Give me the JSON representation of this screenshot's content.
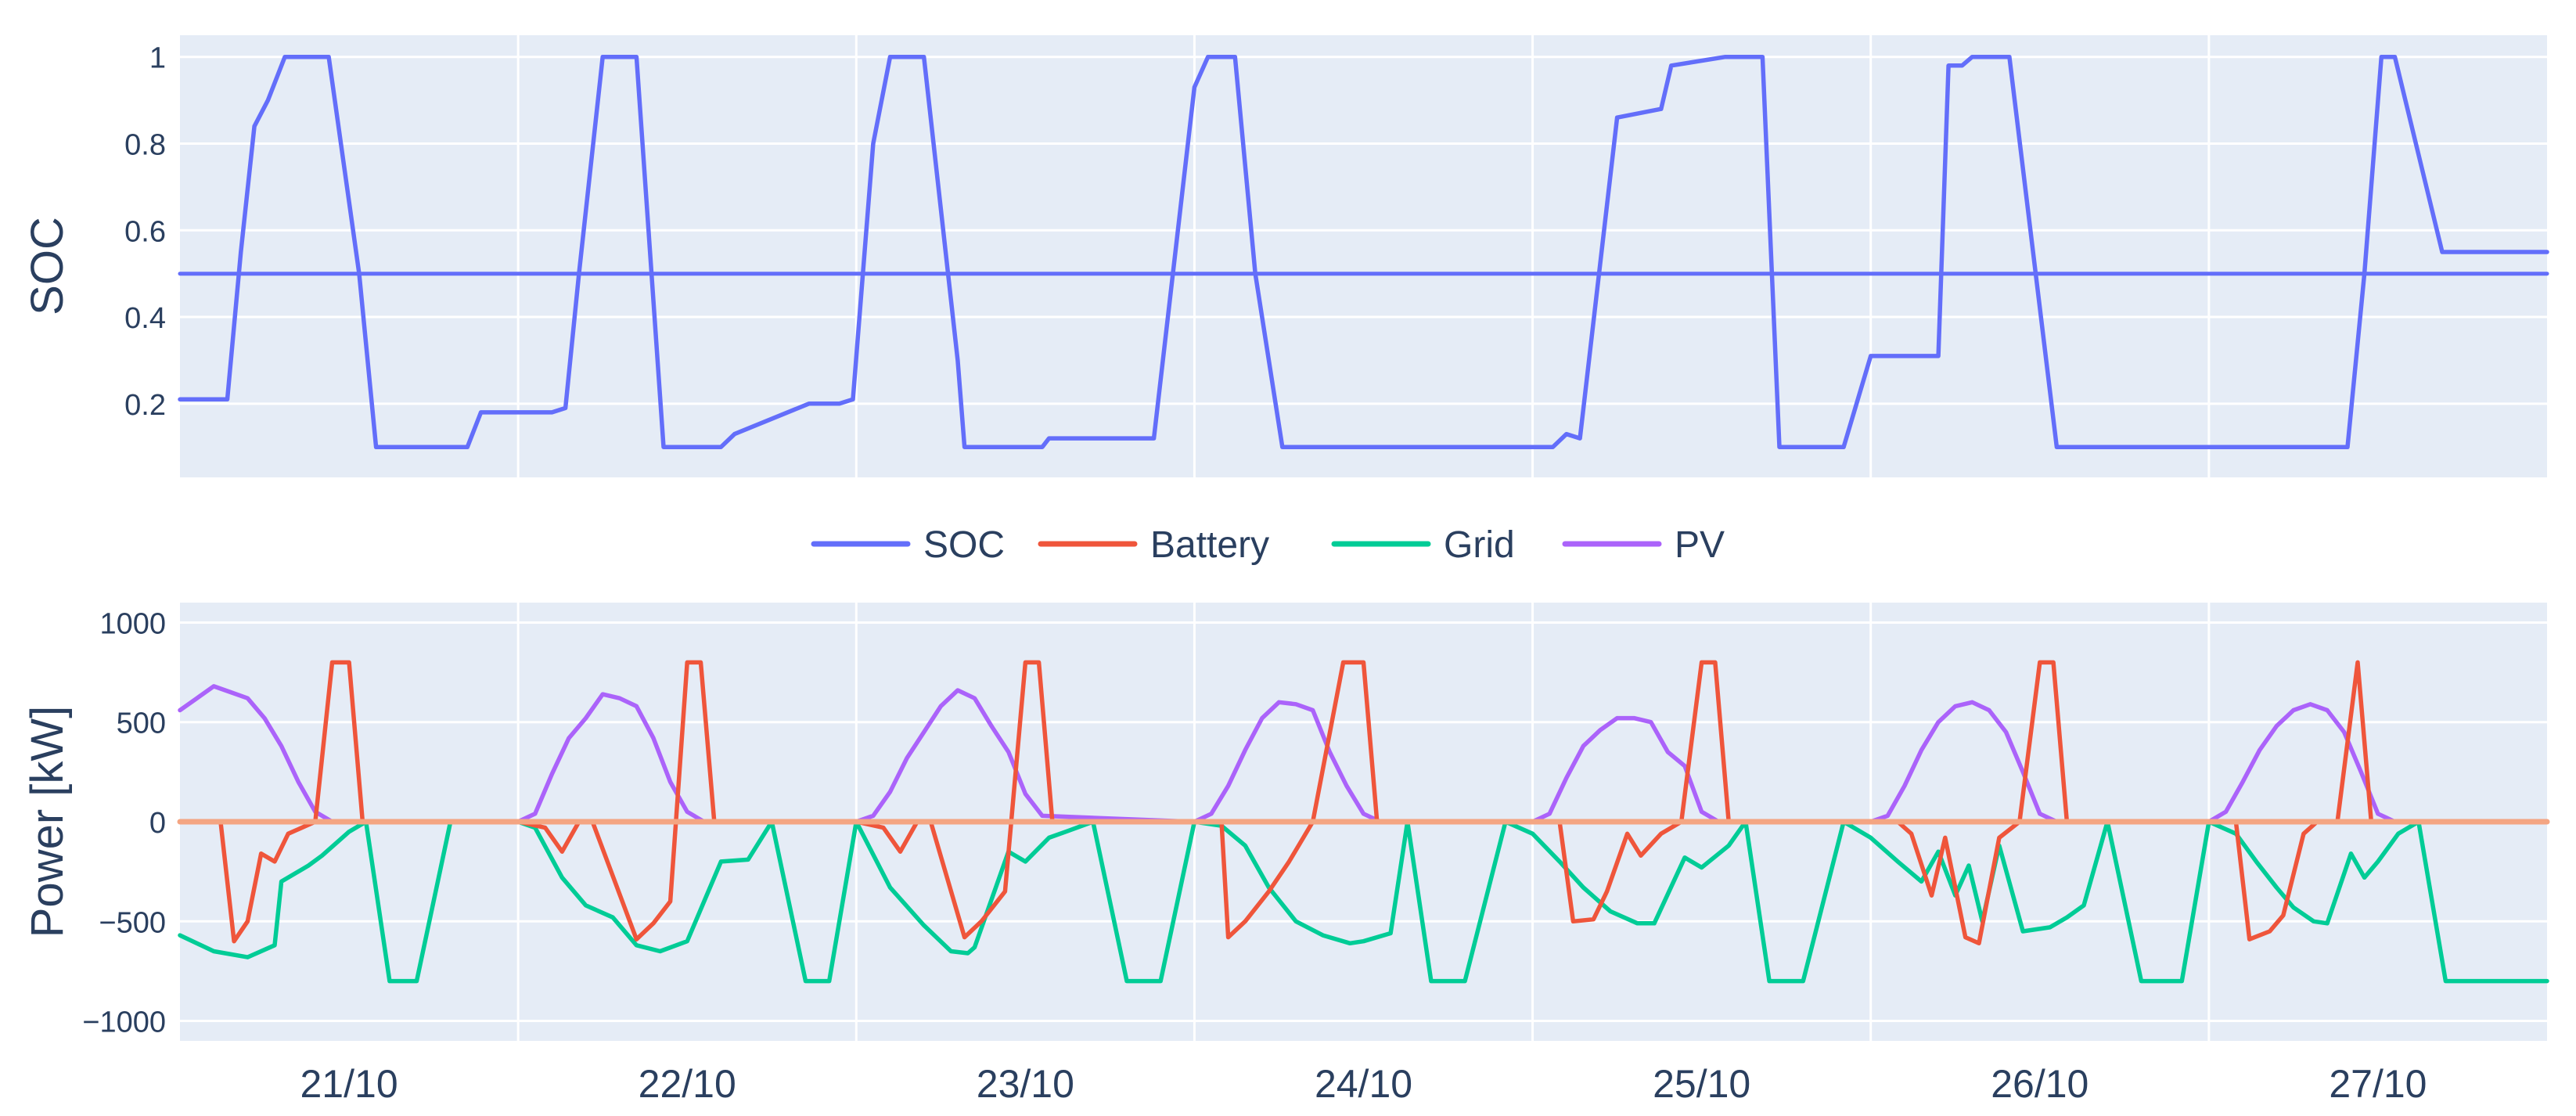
{
  "colors": {
    "soc": "#636efa",
    "battery": "#ef553b",
    "grid": "#00cc96",
    "pv": "#ab63fa",
    "zero_line": "#f4a582",
    "plot_bg": "#e5ecf6",
    "grid_line": "#ffffff",
    "text": "#2a3f5f"
  },
  "legend": {
    "placement": "between-panels-center",
    "items": [
      "SOC",
      "Battery",
      "Grid",
      "PV"
    ]
  },
  "chart_data": [
    {
      "type": "line",
      "panel": "top",
      "xlabel": "",
      "ylabel": "SOC",
      "ylim": [
        0.03,
        1.05
      ],
      "yticks": [
        0.2,
        0.4,
        0.6,
        0.8,
        1
      ],
      "ytick_labels": [
        "0.2",
        "0.4",
        "0.6",
        "0.8",
        "1"
      ],
      "xlim": [
        0,
        7
      ],
      "grid": true,
      "series": [
        {
          "name": "SOC",
          "x": [
            0,
            0.14,
            0.18,
            0.22,
            0.26,
            0.31,
            0.44,
            0.53,
            0.58,
            0.85,
            0.89,
            1.1,
            1.14,
            1.18,
            1.25,
            1.28,
            1.35,
            1.43,
            1.6,
            1.64,
            1.86,
            1.91,
            1.95,
            1.99,
            2.05,
            2.1,
            2.2,
            2.3,
            2.32,
            2.38,
            2.45,
            2.55,
            2.57,
            2.63,
            2.68,
            2.76,
            2.88,
            3.0,
            3.04,
            3.08,
            3.12,
            3.18,
            3.26,
            3.35,
            3.42,
            3.45,
            3.53,
            3.57,
            3.64,
            4.01,
            4.06,
            4.1,
            4.14,
            4.25,
            4.38,
            4.41,
            4.57,
            4.6,
            4.64,
            4.68,
            4.73,
            4.8,
            4.87,
            4.92,
            5.0,
            5.2,
            5.23,
            5.27,
            5.3,
            5.35,
            5.41,
            5.55,
            5.59,
            5.63,
            5.68,
            5.87,
            5.91,
            6.41,
            6.46,
            6.51,
            6.55,
            6.69,
            7.0
          ],
          "values": [
            0.21,
            0.21,
            0.55,
            0.84,
            0.9,
            1.0,
            1.0,
            0.5,
            0.1,
            0.1,
            0.18,
            0.18,
            0.19,
            0.5,
            1.0,
            1.0,
            1.0,
            0.1,
            0.1,
            0.13,
            0.2,
            0.2,
            0.2,
            0.21,
            0.8,
            1.0,
            1.0,
            0.3,
            0.1,
            0.1,
            0.1,
            0.1,
            0.12,
            0.12,
            0.12,
            0.12,
            0.12,
            0.93,
            1.0,
            1.0,
            1.0,
            0.5,
            0.1,
            0.1,
            0.1,
            0.1,
            0.1,
            0.1,
            0.1,
            0.1,
            0.1,
            0.13,
            0.12,
            0.86,
            0.88,
            0.98,
            1.0,
            1.0,
            1.0,
            1.0,
            0.1,
            0.1,
            0.1,
            0.1,
            0.31,
            0.31,
            0.98,
            0.98,
            1.0,
            1.0,
            1.0,
            0.1,
            0.1,
            0.1,
            0.1,
            0.1,
            0.1,
            0.1,
            0.5,
            1.0,
            1.0,
            0.55,
            0.55
          ]
        },
        {
          "name": "",
          "x": [
            0,
            7
          ],
          "values": [
            0.5,
            0.5
          ]
        }
      ]
    },
    {
      "type": "line",
      "panel": "bottom",
      "xlabel": "",
      "ylabel": "Power [kW]",
      "ylim": [
        -1100,
        1100
      ],
      "yticks": [
        -1000,
        -500,
        0,
        500,
        1000
      ],
      "ytick_labels": [
        "−1000",
        "−500",
        "0",
        "500",
        "1000"
      ],
      "xlim": [
        0,
        7
      ],
      "grid": true,
      "categories": [
        "21/10",
        "22/10",
        "23/10",
        "24/10",
        "25/10",
        "26/10",
        "27/10"
      ],
      "series": [
        {
          "name": "PV",
          "x": [
            0,
            0.05,
            0.1,
            0.15,
            0.2,
            0.25,
            0.3,
            0.35,
            0.4,
            0.45,
            0.5,
            0.55,
            1.0,
            1.05,
            1.1,
            1.15,
            1.2,
            1.25,
            1.3,
            1.35,
            1.4,
            1.45,
            1.5,
            1.55,
            2.0,
            2.05,
            2.1,
            2.15,
            2.2,
            2.25,
            2.3,
            2.35,
            2.4,
            2.45,
            2.5,
            2.55,
            3.0,
            3.05,
            3.1,
            3.15,
            3.2,
            3.25,
            3.3,
            3.35,
            3.4,
            3.45,
            3.5,
            3.55,
            4.0,
            4.05,
            4.1,
            4.15,
            4.2,
            4.25,
            4.3,
            4.35,
            4.4,
            4.45,
            4.5,
            4.55,
            5.0,
            5.05,
            5.1,
            5.15,
            5.2,
            5.25,
            5.3,
            5.35,
            5.4,
            5.45,
            5.5,
            5.55,
            6.0,
            6.05,
            6.1,
            6.15,
            6.2,
            6.25,
            6.3,
            6.35,
            6.4,
            6.45,
            6.5,
            6.55
          ],
          "values": [
            560,
            620,
            680,
            650,
            620,
            520,
            380,
            200,
            50,
            0,
            0,
            0,
            0,
            40,
            240,
            420,
            520,
            640,
            620,
            580,
            420,
            200,
            50,
            0,
            0,
            30,
            150,
            320,
            450,
            580,
            660,
            620,
            480,
            350,
            140,
            30,
            0,
            40,
            180,
            360,
            520,
            600,
            590,
            560,
            350,
            180,
            40,
            0,
            0,
            40,
            220,
            380,
            460,
            520,
            520,
            500,
            350,
            280,
            50,
            0,
            0,
            30,
            180,
            360,
            500,
            580,
            600,
            560,
            450,
            250,
            40,
            0,
            0,
            50,
            200,
            360,
            480,
            560,
            590,
            560,
            450,
            250,
            40,
            0
          ]
        },
        {
          "name": "Grid",
          "x": [
            0,
            0.1,
            0.2,
            0.28,
            0.3,
            0.38,
            0.42,
            0.48,
            0.5,
            0.55,
            0.62,
            0.7,
            0.8,
            0.9,
            1.0,
            1.05,
            1.13,
            1.2,
            1.28,
            1.35,
            1.42,
            1.5,
            1.6,
            1.68,
            1.75,
            1.85,
            1.92,
            2.0,
            2.1,
            2.2,
            2.28,
            2.33,
            2.35,
            2.45,
            2.5,
            2.57,
            2.62,
            2.7,
            2.8,
            2.9,
            3.0,
            3.08,
            3.15,
            3.22,
            3.3,
            3.38,
            3.46,
            3.5,
            3.58,
            3.63,
            3.7,
            3.8,
            3.92,
            4.0,
            4.08,
            4.15,
            4.23,
            4.31,
            4.36,
            4.45,
            4.5,
            4.58,
            4.63,
            4.7,
            4.8,
            4.92,
            5.0,
            5.08,
            5.15,
            5.2,
            5.25,
            5.29,
            5.33,
            5.38,
            5.45,
            5.53,
            5.58,
            5.63,
            5.7,
            5.8,
            5.92,
            6.0,
            6.08,
            6.14,
            6.2,
            6.25,
            6.31,
            6.35,
            6.42,
            6.46,
            6.5,
            6.56,
            6.62,
            6.7,
            7.0
          ],
          "values": [
            -570,
            -650,
            -680,
            -620,
            -300,
            -220,
            -170,
            -80,
            -50,
            0,
            -800,
            -800,
            0,
            0,
            0,
            -30,
            -280,
            -420,
            -480,
            -620,
            -650,
            -600,
            -200,
            -190,
            0,
            -800,
            -800,
            0,
            -330,
            -520,
            -650,
            -660,
            -630,
            -150,
            -200,
            -80,
            -50,
            0,
            -800,
            -800,
            0,
            -20,
            -120,
            -330,
            -500,
            -570,
            -610,
            -600,
            -560,
            0,
            -800,
            -800,
            0,
            -60,
            -200,
            -330,
            -450,
            -510,
            -510,
            -180,
            -230,
            -120,
            0,
            -800,
            -800,
            0,
            -80,
            -200,
            -300,
            -150,
            -370,
            -220,
            -500,
            -120,
            -550,
            -530,
            -480,
            -420,
            0,
            -800,
            -800,
            0,
            -60,
            -200,
            -330,
            -430,
            -500,
            -510,
            -160,
            -280,
            -200,
            -60,
            0,
            -800,
            -800
          ]
        },
        {
          "name": "Battery",
          "x": [
            0,
            0.12,
            0.16,
            0.2,
            0.24,
            0.28,
            0.32,
            0.4,
            0.45,
            0.5,
            0.54,
            0.58,
            1.0,
            1.08,
            1.13,
            1.18,
            1.2,
            1.22,
            1.35,
            1.4,
            1.45,
            1.5,
            1.54,
            1.58,
            2.0,
            2.08,
            2.13,
            2.18,
            2.2,
            2.22,
            2.32,
            2.37,
            2.44,
            2.5,
            2.54,
            2.58,
            3.0,
            3.08,
            3.1,
            3.15,
            3.22,
            3.28,
            3.35,
            3.44,
            3.5,
            3.54,
            3.58,
            4.0,
            4.08,
            4.12,
            4.18,
            4.22,
            4.28,
            4.32,
            4.38,
            4.44,
            4.5,
            4.54,
            4.58,
            5.0,
            5.08,
            5.12,
            5.18,
            5.22,
            5.28,
            5.32,
            5.38,
            5.44,
            5.5,
            5.54,
            5.58,
            6.0,
            6.08,
            6.12,
            6.18,
            6.22,
            6.28,
            6.32,
            6.38,
            6.44,
            6.48,
            6.52,
            7.0
          ],
          "values": [
            0,
            0,
            -600,
            -500,
            -160,
            -200,
            -60,
            0,
            800,
            800,
            0,
            0,
            0,
            -30,
            -150,
            0,
            0,
            0,
            -590,
            -510,
            -400,
            800,
            800,
            0,
            0,
            -30,
            -150,
            0,
            0,
            0,
            -580,
            -500,
            -350,
            800,
            800,
            0,
            0,
            0,
            -580,
            -500,
            -350,
            -200,
            0,
            800,
            800,
            0,
            0,
            0,
            0,
            -500,
            -490,
            -350,
            -60,
            -170,
            -60,
            0,
            800,
            800,
            0,
            0,
            0,
            -60,
            -370,
            -80,
            -580,
            -610,
            -80,
            0,
            800,
            800,
            0,
            0,
            0,
            -590,
            -550,
            -470,
            -60,
            0,
            0,
            800,
            0,
            0,
            0
          ]
        },
        {
          "name": "",
          "x": [
            0,
            7
          ],
          "values": [
            0,
            0
          ]
        }
      ]
    }
  ]
}
